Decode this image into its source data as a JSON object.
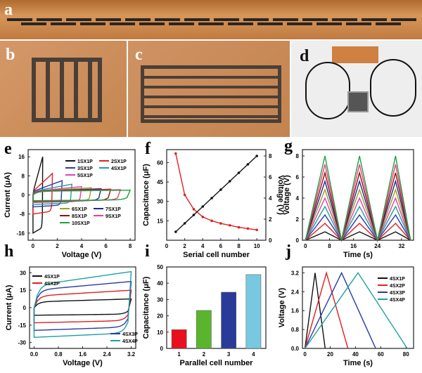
{
  "panels": {
    "a": "a",
    "b": "b",
    "c": "c",
    "d": "d",
    "e": "e",
    "f": "f",
    "g": "g",
    "h": "h",
    "i": "i",
    "j": "j"
  },
  "colors": {
    "copper": "#c88a4e",
    "pattern": "#3b3430"
  },
  "chart_data": [
    {
      "id": "e",
      "type": "line",
      "xlabel": "Voltage (V)",
      "ylabel": "Current (μA)",
      "xlim": [
        -0.4,
        8.4
      ],
      "ylim": [
        -19,
        19
      ],
      "xticks": [
        0,
        2,
        4,
        6,
        8
      ],
      "yticks": [
        -16,
        -8,
        0,
        8,
        16
      ],
      "series": [
        {
          "name": "1SX1P",
          "color": "#111111",
          "vmax": 0.8,
          "top": [
            1,
            16
          ],
          "bot": -16
        },
        {
          "name": "2SX1P",
          "color": "#e02020",
          "vmax": 1.6,
          "top": [
            1.5,
            9
          ],
          "bot": -8
        },
        {
          "name": "3SX1P",
          "color": "#2a3aa8",
          "vmax": 2.4,
          "top": [
            1.5,
            6
          ],
          "bot": -5
        },
        {
          "name": "4SX1P",
          "color": "#20a0a0",
          "vmax": 3.2,
          "top": [
            1.5,
            4.5
          ],
          "bot": -4
        },
        {
          "name": "5SX1P",
          "color": "#e040b0",
          "vmax": 4.0,
          "top": [
            1.5,
            3.5
          ],
          "bot": -3.2
        },
        {
          "name": "6SX1P",
          "color": "#a0a020",
          "vmax": 4.8,
          "top": [
            1.5,
            3
          ],
          "bot": -2.9
        },
        {
          "name": "7SX1P",
          "color": "#1a2a90",
          "vmax": 5.6,
          "top": [
            1.5,
            2.6
          ],
          "bot": -2.7
        },
        {
          "name": "8SX1P",
          "color": "#901010",
          "vmax": 6.4,
          "top": [
            1.5,
            2.4
          ],
          "bot": -2.6
        },
        {
          "name": "9SX1P",
          "color": "#f04080",
          "vmax": 7.2,
          "top": [
            1.5,
            2.2
          ],
          "bot": -2.5
        },
        {
          "name": "10SX1P",
          "color": "#20a040",
          "vmax": 8.0,
          "top": [
            1.5,
            2
          ],
          "bot": -2.4
        }
      ]
    },
    {
      "id": "f",
      "type": "line",
      "xlabel": "Serial cell number",
      "ylabel": "Capacitance (μF)",
      "y2label": "Voltage (V)",
      "xlim": [
        0,
        11
      ],
      "ylim": [
        0,
        70
      ],
      "y2lim": [
        0,
        8.6
      ],
      "xticks": [
        0,
        2,
        4,
        6,
        8,
        10
      ],
      "yticks": [
        15,
        30,
        45,
        60
      ],
      "y2ticks": [
        0,
        2,
        4,
        6,
        8
      ],
      "x": [
        1,
        2,
        3,
        4,
        5,
        6,
        7,
        8,
        9,
        10
      ],
      "series": [
        {
          "name": "Capacitance",
          "axis": "left",
          "color": "#e02020",
          "values": [
            67,
            35,
            24,
            18,
            15,
            13,
            11.5,
            10,
            9,
            8
          ]
        },
        {
          "name": "Voltage",
          "axis": "right",
          "color": "#111111",
          "values": [
            0.8,
            1.6,
            2.4,
            3.2,
            4.0,
            4.8,
            5.6,
            6.4,
            7.2,
            8.0
          ]
        }
      ]
    },
    {
      "id": "g",
      "type": "line",
      "xlabel": "Time (s)",
      "ylabel": "Voltage (V)",
      "xlim": [
        -1,
        36
      ],
      "ylim": [
        0,
        8.6
      ],
      "xticks": [
        0,
        8,
        16,
        24,
        32
      ],
      "yticks": [
        0,
        2,
        4,
        6,
        8
      ],
      "peak_times": [
        6.5,
        18,
        30
      ],
      "valley_times": [
        0,
        12,
        24,
        35
      ],
      "series": [
        {
          "name": "1SX1P",
          "color": "#111111",
          "peak": 0.8
        },
        {
          "name": "2SX1P",
          "color": "#e02020",
          "peak": 1.6
        },
        {
          "name": "3SX1P",
          "color": "#2a3aa8",
          "peak": 2.4
        },
        {
          "name": "4SX1P",
          "color": "#20a0a0",
          "peak": 3.2
        },
        {
          "name": "5SX1P",
          "color": "#e040b0",
          "peak": 4.0
        },
        {
          "name": "6SX1P",
          "color": "#a0a020",
          "peak": 4.8
        },
        {
          "name": "7SX1P",
          "color": "#1a2a90",
          "peak": 5.6
        },
        {
          "name": "8SX1P",
          "color": "#901010",
          "peak": 6.4
        },
        {
          "name": "9SX1P",
          "color": "#f04080",
          "peak": 7.2
        },
        {
          "name": "10SX1P",
          "color": "#20a040",
          "peak": 8.0
        }
      ]
    },
    {
      "id": "h",
      "type": "line",
      "xlabel": "Voltage (V)",
      "ylabel": "Current (μA)",
      "xlim": [
        -0.15,
        3.35
      ],
      "ylim": [
        -35,
        35
      ],
      "xticks": [
        0.0,
        0.8,
        1.6,
        2.4,
        3.2
      ],
      "xticklabels": [
        "0.0",
        "0.8",
        "1.6",
        "2.4",
        "3.2"
      ],
      "yticks": [
        -30,
        -15,
        0,
        15,
        30
      ],
      "series": [
        {
          "name": "4SX1P",
          "color": "#111111",
          "top": [
            5,
            7.5
          ],
          "bot": -6.5
        },
        {
          "name": "4SX2P",
          "color": "#e02020",
          "top": [
            10,
            15
          ],
          "bot": -13
        },
        {
          "name": "4SX3P",
          "color": "#2a3aa8",
          "top": [
            15,
            22.5
          ],
          "bot": -19.5
        },
        {
          "name": "4SX4P",
          "color": "#20a0a0",
          "top": [
            19,
            31
          ],
          "bot": -25.5
        }
      ]
    },
    {
      "id": "i",
      "type": "bar",
      "xlabel": "Parallel cell number",
      "ylabel": "Capacitance (μF)",
      "ylim": [
        0,
        50
      ],
      "yticks": [
        0,
        10,
        20,
        30,
        40,
        50
      ],
      "categories": [
        "1",
        "2",
        "3",
        "4"
      ],
      "values": [
        11.5,
        23.3,
        34.5,
        45.3
      ],
      "bar_colors": [
        "#e8101e",
        "#5ab52e",
        "#2a3a98",
        "#78c8e0"
      ]
    },
    {
      "id": "j",
      "type": "line",
      "xlabel": "Time (s)",
      "ylabel": "Voltage (V)",
      "xlim": [
        -2,
        86
      ],
      "ylim": [
        0,
        3.45
      ],
      "xticks": [
        0,
        20,
        40,
        60,
        80
      ],
      "yticks": [
        0,
        0.8,
        1.6,
        2.4,
        3.2
      ],
      "yticklabels": [
        "0.0",
        "0.8",
        "1.6",
        "2.4",
        "3.2"
      ],
      "series": [
        {
          "name": "4SX1P",
          "color": "#111111",
          "points": [
            [
              0,
              0
            ],
            [
              8,
              3.2
            ],
            [
              16,
              0
            ]
          ]
        },
        {
          "name": "4SX2P",
          "color": "#e02020",
          "points": [
            [
              0,
              0
            ],
            [
              17,
              3.2
            ],
            [
              34,
              0
            ]
          ]
        },
        {
          "name": "4SX3P",
          "color": "#2a3aa8",
          "points": [
            [
              0,
              0
            ],
            [
              29,
              3.2
            ],
            [
              56,
              0
            ]
          ]
        },
        {
          "name": "4SX4P",
          "color": "#20a0a0",
          "points": [
            [
              0,
              0
            ],
            [
              42,
              3.2
            ],
            [
              81,
              0
            ]
          ]
        }
      ]
    }
  ]
}
